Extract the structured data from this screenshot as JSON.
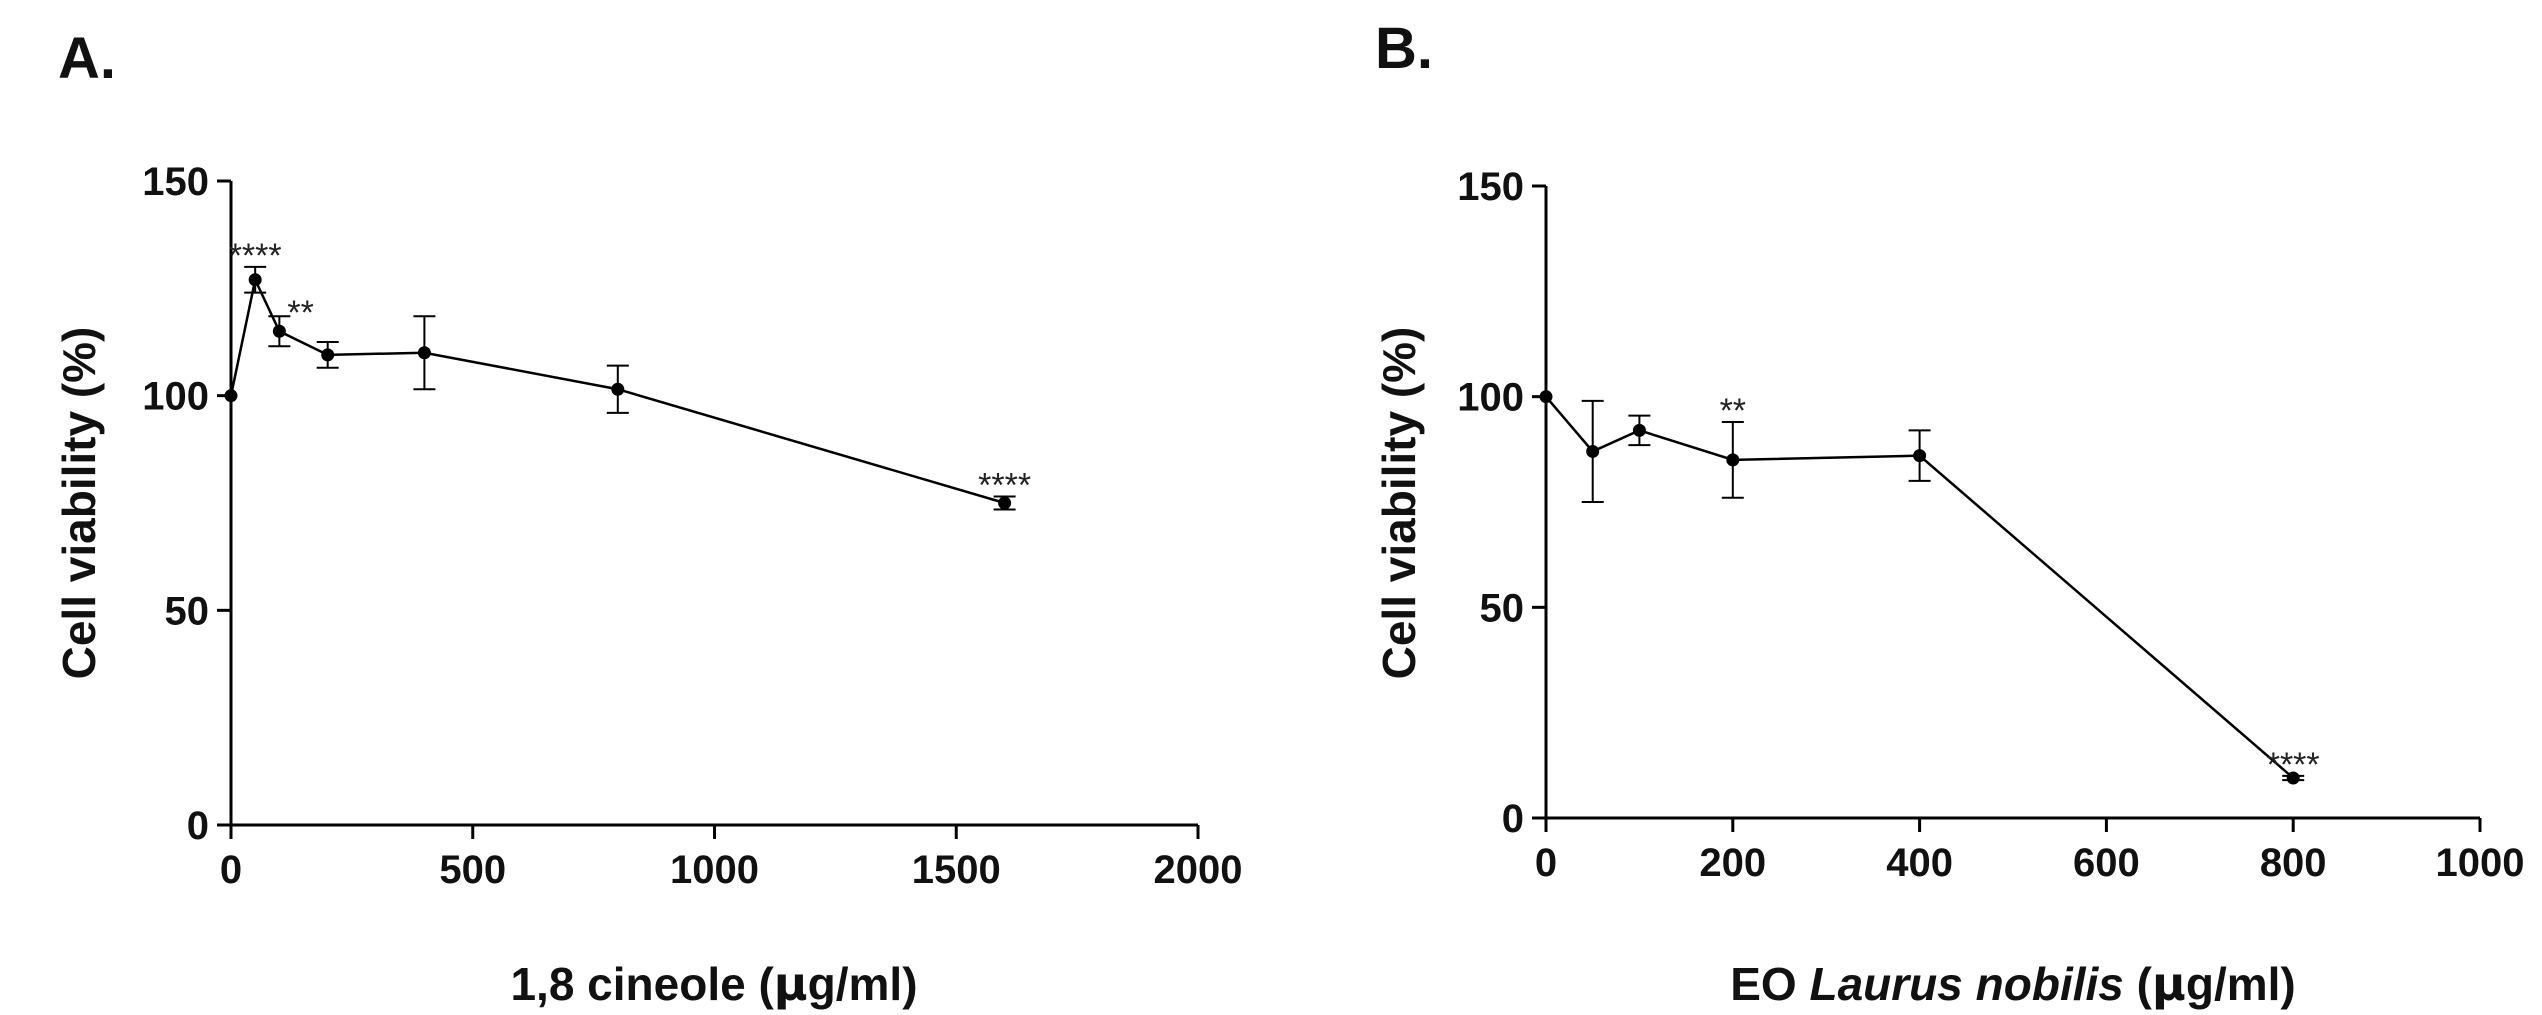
{
  "chart_data": [
    {
      "type": "line",
      "panel_label": "A.",
      "xlabel_parts": [
        "1,8 cineole (",
        "μ",
        "g/ml)"
      ],
      "ylabel": "Cell viability (%)",
      "xlim": [
        0,
        2000
      ],
      "ylim": [
        0,
        150
      ],
      "xticks": [
        0,
        500,
        1000,
        1500,
        2000
      ],
      "yticks": [
        0,
        50,
        100,
        150
      ],
      "points": [
        {
          "x": 0,
          "y": 100,
          "err": 0,
          "sig": ""
        },
        {
          "x": 50,
          "y": 127,
          "err": 3,
          "sig": "****"
        },
        {
          "x": 100,
          "y": 115,
          "err": 3.5,
          "sig": "**"
        },
        {
          "x": 200,
          "y": 109.5,
          "err": 3,
          "sig": ""
        },
        {
          "x": 400,
          "y": 110,
          "err": 8.5,
          "sig": ""
        },
        {
          "x": 800,
          "y": 101.5,
          "err": 5.5,
          "sig": ""
        },
        {
          "x": 1600,
          "y": 75,
          "err": 1.5,
          "sig": "****"
        }
      ]
    },
    {
      "type": "line",
      "panel_label": "B.",
      "xlabel_parts": [
        "EO ",
        "Laurus nobilis",
        " (",
        "μ",
        "g/ml)"
      ],
      "ylabel": "Cell viability (%)",
      "xlim": [
        0,
        1000
      ],
      "ylim": [
        0,
        150
      ],
      "xticks": [
        0,
        200,
        400,
        600,
        800,
        1000
      ],
      "yticks": [
        0,
        50,
        100,
        150
      ],
      "points": [
        {
          "x": 0,
          "y": 100,
          "err": 0,
          "sig": ""
        },
        {
          "x": 50,
          "y": 87,
          "err": 12,
          "sig": ""
        },
        {
          "x": 100,
          "y": 92,
          "err": 3.5,
          "sig": ""
        },
        {
          "x": 200,
          "y": 85,
          "err": 9,
          "sig": "**"
        },
        {
          "x": 400,
          "y": 86,
          "err": 6,
          "sig": ""
        },
        {
          "x": 800,
          "y": 9.5,
          "err": 0.5,
          "sig": "****"
        }
      ]
    }
  ]
}
